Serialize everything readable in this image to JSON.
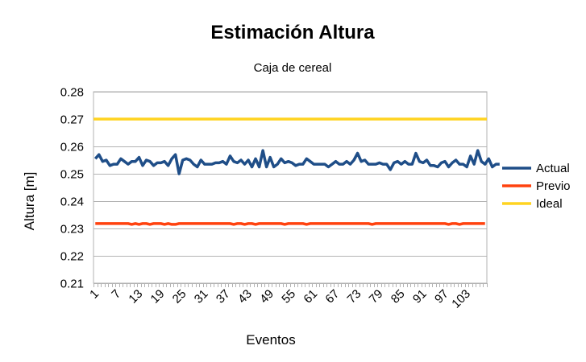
{
  "chart_data": {
    "type": "line",
    "title": "Estimación Altura",
    "subtitle": "Caja de cereal",
    "xlabel": "Eventos",
    "ylabel": "Altura [m]",
    "ylim": [
      0.21,
      0.28
    ],
    "ytick_step": 0.01,
    "y_ticks": [
      "0.21",
      "0.22",
      "0.23",
      "0.24",
      "0.25",
      "0.26",
      "0.27",
      "0.28"
    ],
    "x_count": 108,
    "x_tick_labels": [
      "1",
      "7",
      "13",
      "19",
      "25",
      "31",
      "37",
      "43",
      "49",
      "55",
      "61",
      "67",
      "73",
      "79",
      "85",
      "91",
      "97",
      "103"
    ],
    "x_tick_every": 6,
    "grid": true,
    "legend_position": "right",
    "series": [
      {
        "name": "Actual",
        "color": "#1f4e88",
        "values": [
          0.2555,
          0.257,
          0.2545,
          0.255,
          0.253,
          0.2535,
          0.2535,
          0.2555,
          0.2545,
          0.2535,
          0.2545,
          0.2545,
          0.256,
          0.253,
          0.255,
          0.2545,
          0.253,
          0.254,
          0.254,
          0.2545,
          0.253,
          0.2555,
          0.257,
          0.25,
          0.255,
          0.2555,
          0.255,
          0.2535,
          0.2525,
          0.255,
          0.2535,
          0.2535,
          0.2535,
          0.254,
          0.254,
          0.2545,
          0.2535,
          0.2565,
          0.2545,
          0.254,
          0.255,
          0.2535,
          0.255,
          0.2525,
          0.2555,
          0.2525,
          0.2585,
          0.2525,
          0.256,
          0.2525,
          0.2535,
          0.2555,
          0.254,
          0.2545,
          0.254,
          0.253,
          0.2535,
          0.2535,
          0.2555,
          0.2545,
          0.2535,
          0.2535,
          0.2535,
          0.2535,
          0.2525,
          0.2535,
          0.2545,
          0.2535,
          0.2535,
          0.2545,
          0.2535,
          0.255,
          0.2575,
          0.2545,
          0.255,
          0.2535,
          0.2535,
          0.2535,
          0.254,
          0.2535,
          0.2535,
          0.2515,
          0.254,
          0.2545,
          0.2535,
          0.2545,
          0.2535,
          0.2535,
          0.2575,
          0.2545,
          0.254,
          0.255,
          0.253,
          0.253,
          0.2525,
          0.254,
          0.2545,
          0.2525,
          0.254,
          0.255,
          0.2535,
          0.2535,
          0.2525,
          0.2565,
          0.2535,
          0.2585,
          0.2545,
          0.2535,
          0.2555,
          0.2525,
          0.2535,
          0.2535
        ],
        "width": 3.5
      },
      {
        "name": "Previo",
        "color": "#ff420e",
        "values": [
          0.2318,
          0.2318,
          0.2318,
          0.2318,
          0.2318,
          0.2318,
          0.2318,
          0.2318,
          0.2318,
          0.2318,
          0.2315,
          0.2318,
          0.2315,
          0.2318,
          0.2318,
          0.2315,
          0.2318,
          0.2318,
          0.2318,
          0.2315,
          0.2318,
          0.2315,
          0.2315,
          0.2318,
          0.2318,
          0.2318,
          0.2318,
          0.2318,
          0.2318,
          0.2318,
          0.2318,
          0.2318,
          0.2318,
          0.2318,
          0.2318,
          0.2318,
          0.2318,
          0.2318,
          0.2315,
          0.2318,
          0.2318,
          0.2315,
          0.2318,
          0.2318,
          0.2315,
          0.2318,
          0.2318,
          0.2318,
          0.2318,
          0.2318,
          0.2318,
          0.2318,
          0.2315,
          0.2318,
          0.2318,
          0.2318,
          0.2318,
          0.2318,
          0.2315,
          0.2318,
          0.2318,
          0.2318,
          0.2318,
          0.2318,
          0.2318,
          0.2318,
          0.2318,
          0.2318,
          0.2318,
          0.2318,
          0.2318,
          0.2318,
          0.2318,
          0.2318,
          0.2318,
          0.2318,
          0.2315,
          0.2318,
          0.2318,
          0.2318,
          0.2318,
          0.2318,
          0.2318,
          0.2318,
          0.2318,
          0.2318,
          0.2318,
          0.2318,
          0.2318,
          0.2318,
          0.2318,
          0.2318,
          0.2318,
          0.2318,
          0.2318,
          0.2318,
          0.2318,
          0.2315,
          0.2318,
          0.2318,
          0.2315,
          0.2318,
          0.2318,
          0.2318,
          0.2318,
          0.2318,
          0.2318,
          0.2318
        ],
        "width": 3.5
      },
      {
        "name": "Ideal",
        "color": "#ffd320",
        "values_constant": 0.27,
        "width": 3.5
      }
    ]
  }
}
